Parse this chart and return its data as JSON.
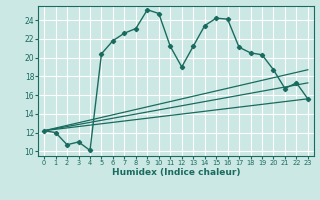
{
  "title": "",
  "xlabel": "Humidex (Indice chaleur)",
  "ylabel": "",
  "bg_color": "#cce8e4",
  "grid_color": "#ffffff",
  "line_color": "#1a6b5f",
  "ylim": [
    9.5,
    25.5
  ],
  "xlim": [
    -0.5,
    23.5
  ],
  "yticks": [
    10,
    12,
    14,
    16,
    18,
    20,
    22,
    24
  ],
  "xticks": [
    0,
    1,
    2,
    3,
    4,
    5,
    6,
    7,
    8,
    9,
    10,
    11,
    12,
    13,
    14,
    15,
    16,
    17,
    18,
    19,
    20,
    21,
    22,
    23
  ],
  "series": [
    {
      "x": [
        0,
        1,
        2,
        3,
        4,
        5,
        6,
        7,
        8,
        9,
        10,
        11,
        12,
        13,
        14,
        15,
        16,
        17,
        18,
        19,
        20,
        21,
        22,
        23
      ],
      "y": [
        12.2,
        12.0,
        10.7,
        11.0,
        10.1,
        20.4,
        21.8,
        22.6,
        23.1,
        25.1,
        24.7,
        21.2,
        19.0,
        21.2,
        23.4,
        24.2,
        24.1,
        21.1,
        20.5,
        20.3,
        18.7,
        16.7,
        17.3,
        15.6
      ]
    },
    {
      "x": [
        0,
        23
      ],
      "y": [
        12.2,
        15.6
      ]
    },
    {
      "x": [
        0,
        23
      ],
      "y": [
        12.2,
        17.3
      ]
    },
    {
      "x": [
        0,
        23
      ],
      "y": [
        12.2,
        18.7
      ]
    }
  ]
}
